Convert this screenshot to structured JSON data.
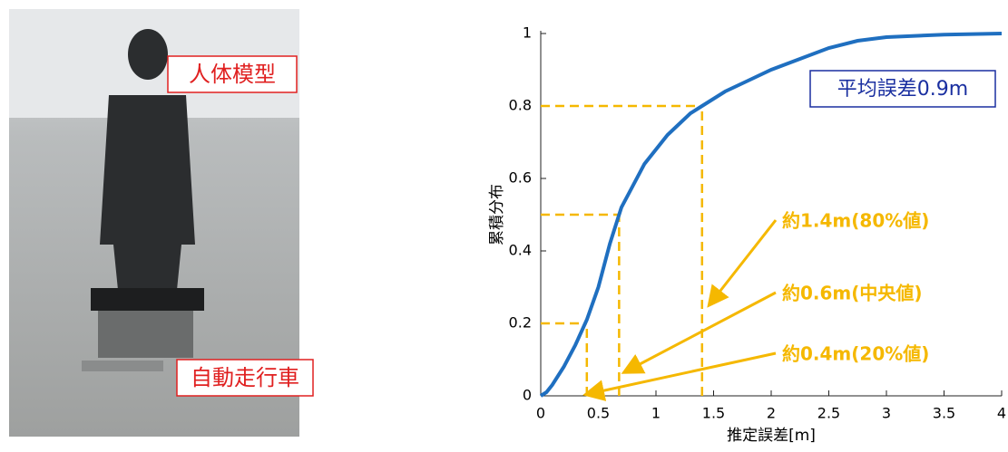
{
  "photo": {
    "labels": [
      "人体模型",
      "自動走行車"
    ]
  },
  "chart_data": {
    "type": "line",
    "x_label": "推定誤差[m]",
    "y_label": "累積分布",
    "xlim": [
      0,
      4
    ],
    "ylim": [
      0,
      1
    ],
    "xticks": [
      0,
      0.5,
      1,
      1.5,
      2,
      2.5,
      3,
      3.5,
      4
    ],
    "yticks": [
      0,
      0.2,
      0.4,
      0.6,
      0.8,
      1
    ],
    "series": [
      {
        "name": "累積分布",
        "color": "#1f6fc0",
        "x": [
          0,
          0.05,
          0.1,
          0.2,
          0.3,
          0.4,
          0.5,
          0.6,
          0.7,
          0.8,
          0.9,
          1.0,
          1.1,
          1.2,
          1.3,
          1.4,
          1.6,
          1.8,
          2.0,
          2.25,
          2.5,
          2.75,
          3.0,
          3.5,
          4
        ],
        "values": [
          0,
          0.01,
          0.03,
          0.08,
          0.14,
          0.21,
          0.3,
          0.42,
          0.52,
          0.58,
          0.64,
          0.68,
          0.72,
          0.75,
          0.78,
          0.8,
          0.84,
          0.87,
          0.9,
          0.93,
          0.96,
          0.98,
          0.99,
          0.997,
          1.0
        ]
      }
    ],
    "guides": [
      {
        "x": 0.4,
        "y": 0.2
      },
      {
        "x": 0.68,
        "y": 0.5
      },
      {
        "x": 1.4,
        "y": 0.8
      }
    ],
    "guide_color": "#f5b800",
    "mean_label": "平均誤差0.9m",
    "annotations": [
      "約1.4m(80%値)",
      "約0.6m(中央値)",
      "約0.4m(20%値)"
    ]
  }
}
